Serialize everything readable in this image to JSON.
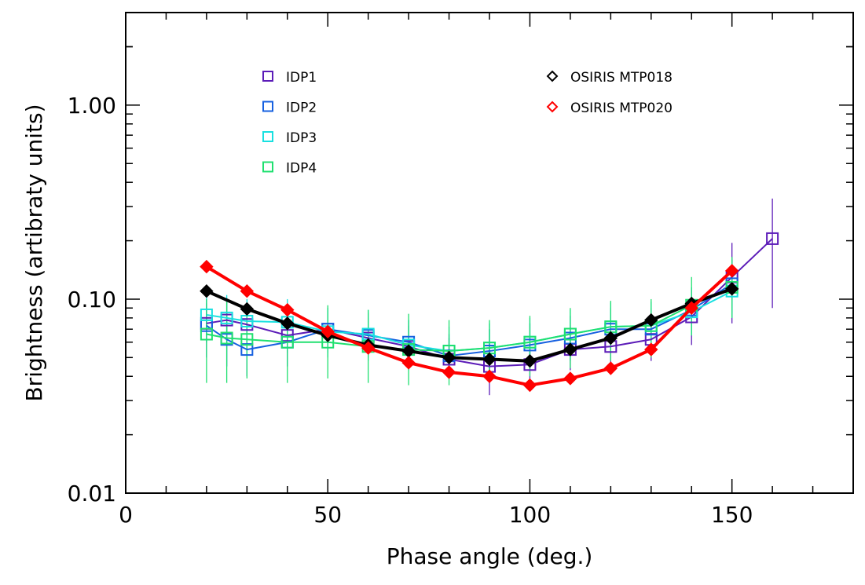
{
  "chart_data": {
    "type": "line",
    "title": "",
    "xlabel": "Phase angle (deg.)",
    "ylabel": "Brightness (artibraty units)",
    "xlim": [
      0,
      180
    ],
    "ylim": [
      0.01,
      3.0
    ],
    "yscale": "log",
    "xticks": [
      0,
      50,
      100,
      150
    ],
    "xtick_labels": [
      "0",
      "50",
      "100",
      "150"
    ],
    "yticks": [
      0.01,
      0.1,
      1.0
    ],
    "ytick_labels": [
      "0.01",
      "0.10",
      "1.00"
    ],
    "series": [
      {
        "name": "OSIRIS MTP018",
        "color": "#000000",
        "marker": "diamond",
        "line_width": 4,
        "x": [
          20,
          30,
          40,
          50,
          60,
          70,
          80,
          90,
          100,
          110,
          120,
          130,
          140,
          150
        ],
        "y": [
          0.11,
          0.089,
          0.075,
          0.065,
          0.058,
          0.054,
          0.05,
          0.049,
          0.048,
          0.055,
          0.063,
          0.078,
          0.095,
          0.113
        ]
      },
      {
        "name": "OSIRIS MTP020",
        "color": "#ff0000",
        "marker": "diamond",
        "line_width": 4,
        "x": [
          20,
          30,
          40,
          50,
          60,
          70,
          80,
          90,
          100,
          110,
          120,
          130,
          140,
          150
        ],
        "y": [
          0.147,
          0.11,
          0.088,
          0.068,
          0.056,
          0.047,
          0.042,
          0.04,
          0.036,
          0.039,
          0.044,
          0.055,
          0.09,
          0.14
        ]
      },
      {
        "name": "IDP1",
        "color": "#5c1cb8",
        "marker": "square",
        "line_width": 2,
        "x": [
          20,
          25,
          30,
          40,
          50,
          60,
          70,
          80,
          90,
          100,
          110,
          120,
          130,
          140,
          150,
          160
        ],
        "y": [
          0.075,
          0.078,
          0.074,
          0.065,
          0.07,
          0.063,
          0.057,
          0.049,
          0.045,
          0.046,
          0.055,
          0.057,
          0.062,
          0.081,
          0.13,
          0.205
        ],
        "err_low": [
          0.06,
          0.06,
          0.06,
          0.053,
          0.055,
          0.05,
          0.045,
          0.04,
          0.032,
          0.035,
          0.043,
          0.045,
          0.048,
          0.058,
          0.075,
          0.09
        ],
        "err_high": [
          0.095,
          0.1,
          0.095,
          0.085,
          0.09,
          0.08,
          0.073,
          0.063,
          0.06,
          0.06,
          0.072,
          0.072,
          0.08,
          0.11,
          0.195,
          0.33
        ]
      },
      {
        "name": "IDP2",
        "color": "#1660e0",
        "marker": "square",
        "line_width": 2,
        "x": [
          20,
          25,
          30,
          40,
          50,
          60,
          70,
          80,
          90,
          100,
          110,
          120,
          130,
          140,
          150
        ],
        "y": [
          0.073,
          0.062,
          0.055,
          0.06,
          0.07,
          0.065,
          0.06,
          0.051,
          0.054,
          0.058,
          0.063,
          0.07,
          0.07,
          0.088,
          0.12
        ],
        "err_low": [
          0.05,
          0.045,
          0.04,
          0.045,
          0.053,
          0.05,
          0.046,
          0.04,
          0.042,
          0.045,
          0.048,
          0.054,
          0.054,
          0.066,
          0.085
        ],
        "err_high": [
          0.1,
          0.085,
          0.075,
          0.08,
          0.09,
          0.085,
          0.078,
          0.066,
          0.07,
          0.075,
          0.082,
          0.09,
          0.09,
          0.115,
          0.16
        ]
      },
      {
        "name": "IDP3",
        "color": "#18e0e0",
        "marker": "square",
        "line_width": 2,
        "x": [
          20,
          25,
          30,
          40,
          50,
          60,
          70,
          80,
          90,
          100,
          110,
          120,
          130,
          140,
          150
        ],
        "y": [
          0.083,
          0.08,
          0.077,
          0.076,
          0.068,
          0.066,
          0.058,
          0.054,
          0.056,
          0.06,
          0.066,
          0.072,
          0.073,
          0.086,
          0.11
        ],
        "err_low": [
          0.06,
          0.055,
          0.055,
          0.055,
          0.05,
          0.048,
          0.043,
          0.04,
          0.042,
          0.045,
          0.05,
          0.054,
          0.055,
          0.065,
          0.08
        ],
        "err_high": [
          0.11,
          0.105,
          0.1,
          0.1,
          0.09,
          0.088,
          0.078,
          0.072,
          0.075,
          0.08,
          0.088,
          0.096,
          0.097,
          0.115,
          0.15
        ]
      },
      {
        "name": "IDP4",
        "color": "#20e070",
        "marker": "square",
        "line_width": 2,
        "x": [
          20,
          25,
          30,
          40,
          50,
          60,
          70,
          80,
          90,
          100,
          110,
          120,
          130,
          140,
          150
        ],
        "y": [
          0.066,
          0.063,
          0.062,
          0.06,
          0.06,
          0.057,
          0.055,
          0.054,
          0.056,
          0.06,
          0.066,
          0.072,
          0.073,
          0.093,
          0.115
        ],
        "err_low": [
          0.037,
          0.037,
          0.039,
          0.037,
          0.039,
          0.037,
          0.036,
          0.036,
          0.037,
          0.04,
          0.044,
          0.048,
          0.05,
          0.065,
          0.08
        ],
        "err_high": [
          0.1,
          0.097,
          0.095,
          0.094,
          0.093,
          0.088,
          0.084,
          0.078,
          0.078,
          0.082,
          0.09,
          0.098,
          0.1,
          0.13,
          0.165
        ]
      }
    ]
  },
  "legend": {
    "left": [
      {
        "label": "IDP1",
        "color": "#5c1cb8",
        "marker": "square"
      },
      {
        "label": "IDP2",
        "color": "#1660e0",
        "marker": "square"
      },
      {
        "label": "IDP3",
        "color": "#18e0e0",
        "marker": "square"
      },
      {
        "label": "IDP4",
        "color": "#20e070",
        "marker": "square"
      }
    ],
    "right": [
      {
        "label": "OSIRIS MTP018",
        "color": "#000000",
        "marker": "diamond"
      },
      {
        "label": "OSIRIS MTP020",
        "color": "#ff0000",
        "marker": "diamond"
      }
    ]
  }
}
